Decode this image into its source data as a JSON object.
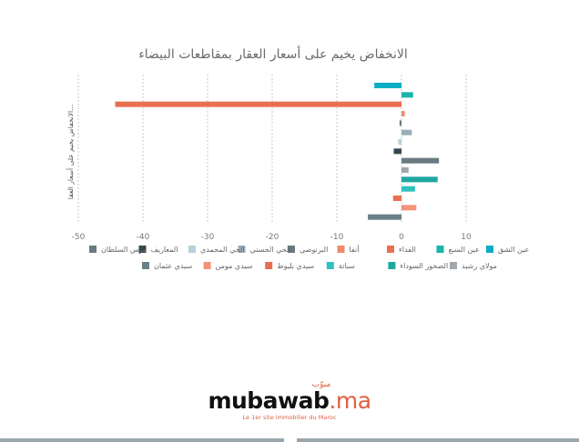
{
  "chart_data": {
    "type": "bar",
    "orientation": "horizontal",
    "title": "الانخفاض يخيم على أسعار العقار بمقاطعات البيضاء",
    "ylabel": "الانخفاض يخيم على أسعار العقا...",
    "xlabel": "",
    "xlim": [
      -50,
      15
    ],
    "xticks": [
      -50,
      -40,
      -30,
      -20,
      -10,
      0,
      10
    ],
    "grid": "vertical dashed",
    "legend_position": "bottom",
    "series": [
      {
        "name": "عين الشق",
        "value": -4.2,
        "color": "#0aaec4"
      },
      {
        "name": "عين السبع",
        "value": 1.8,
        "color": "#1ab5ad"
      },
      {
        "name": "الفداء",
        "value": -44.3,
        "color": "#e8704f"
      },
      {
        "name": "أنفا",
        "value": 0.5,
        "color": "#ef8a6c"
      },
      {
        "name": "البرنوصي",
        "value": -0.3,
        "color": "#6a7a80"
      },
      {
        "name": "الحي الحسني",
        "value": 1.6,
        "color": "#9aafb7"
      },
      {
        "name": "الحي المحمدي",
        "value": -0.5,
        "color": "#b8d0da"
      },
      {
        "name": "المعاريف",
        "value": -1.2,
        "color": "#37474f"
      },
      {
        "name": "مرس السلطان",
        "value": 5.8,
        "color": "#6a7a80"
      },
      {
        "name": "مولاي رشيد",
        "value": 1.1,
        "color": "#a0a8ac"
      },
      {
        "name": "الصخور السوداء",
        "value": 5.6,
        "color": "#20a8a0"
      },
      {
        "name": "سباتة",
        "value": 2.1,
        "color": "#30c0c0"
      },
      {
        "name": "سيدي بليوط",
        "value": -1.3,
        "color": "#e8704f"
      },
      {
        "name": "سيدي مومن",
        "value": 2.3,
        "color": "#f4937a"
      },
      {
        "name": "سيدي عثمان",
        "value": -5.2,
        "color": "#6a8088"
      }
    ]
  },
  "branding": {
    "arabic": "مبوّب",
    "name": "mubawab",
    "tld": ".ma",
    "tagline": "Le 1er site immobilier du Maroc"
  }
}
